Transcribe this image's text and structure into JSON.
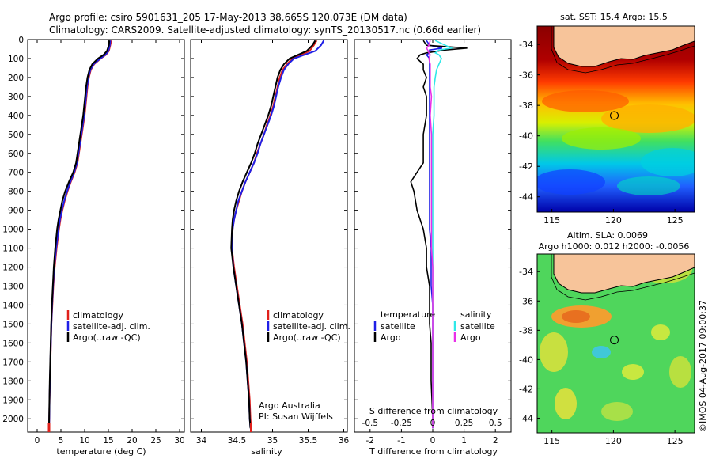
{
  "header": {
    "line1": "Argo profile: csiro 5901631_205 17-May-2013 38.665S 120.073E (DM data)",
    "line2": "Climatology: CARS2009. Satellite-adjusted climatology: synTS_20130517.nc (0.66d earlier)"
  },
  "colors": {
    "climatology": "#e0201b",
    "satellite": "#1f1fe6",
    "argo": "#000000",
    "satellite_salinity": "#30e8e8",
    "argo_salinity": "#e830e8",
    "land": "#f7c49a"
  },
  "chart_data": [
    {
      "type": "line",
      "id": "temperature",
      "xlabel": "temperature (deg C)",
      "ylabel": "",
      "xlim": [
        -2,
        31
      ],
      "ylim": [
        2070,
        0
      ],
      "xticks": [
        "0",
        "5",
        "10",
        "15",
        "20",
        "25",
        "30"
      ],
      "yticks": [
        "0",
        "100",
        "200",
        "300",
        "400",
        "500",
        "600",
        "700",
        "800",
        "900",
        "1000",
        "1100",
        "1200",
        "1300",
        "1400",
        "1500",
        "1600",
        "1700",
        "1800",
        "1900",
        "2000"
      ],
      "legend": [
        "climatology",
        "satellite-adj. clim.",
        "Argo(..raw -QC)"
      ],
      "depth": [
        5,
        30,
        60,
        80,
        100,
        130,
        160,
        200,
        250,
        300,
        350,
        400,
        450,
        500,
        550,
        600,
        650,
        700,
        750,
        800,
        850,
        900,
        950,
        1000,
        1100,
        1200,
        1300,
        1400,
        1500,
        1600,
        1700,
        1800,
        1900,
        2000,
        2050
      ],
      "series": [
        {
          "name": "climatology",
          "values": [
            15.6,
            15.4,
            15.1,
            14.5,
            13.4,
            12.0,
            11.3,
            10.9,
            10.6,
            10.4,
            10.2,
            10.0,
            9.7,
            9.4,
            9.1,
            8.8,
            8.5,
            7.9,
            7.1,
            6.4,
            5.8,
            5.3,
            4.9,
            4.6,
            4.1,
            3.7,
            3.4,
            3.2,
            3.0,
            2.9,
            2.8,
            2.7,
            2.6,
            2.55,
            2.5
          ]
        },
        {
          "name": "satellite-adj. clim.",
          "values": [
            15.4,
            15.3,
            15.0,
            14.4,
            13.3,
            11.9,
            11.2,
            10.8,
            10.5,
            10.3,
            10.1,
            9.9,
            9.6,
            9.3,
            9.0,
            8.7,
            8.4,
            7.8,
            7.0,
            6.3,
            5.7,
            5.2,
            4.8,
            4.5,
            4.0,
            3.6,
            3.35,
            3.15,
            3.0,
            2.88,
            2.78,
            2.68,
            2.6,
            2.55,
            2.5
          ]
        },
        {
          "name": "Argo(..raw -QC)",
          "values": [
            15.2,
            15.1,
            14.7,
            14.0,
            12.8,
            11.6,
            11.0,
            10.6,
            10.3,
            10.1,
            9.9,
            9.7,
            9.4,
            9.1,
            8.8,
            8.5,
            8.2,
            7.6,
            6.7,
            5.9,
            5.3,
            4.9,
            4.5,
            4.2,
            3.8,
            3.5,
            3.3,
            3.1,
            2.95,
            2.85,
            2.75,
            2.65,
            2.58,
            2.52,
            2.5
          ]
        }
      ]
    },
    {
      "type": "line",
      "id": "salinity",
      "xlabel": "salinity",
      "xlim": [
        33.85,
        36.05
      ],
      "ylim": [
        2070,
        0
      ],
      "xticks": [
        "34",
        "34.5",
        "35",
        "35.5",
        "36"
      ],
      "legend": [
        "climatology",
        "satellite-adj. clim.",
        "Argo(..raw -QC)"
      ],
      "annotation": [
        "Argo Australia",
        "PI: Susan Wijffels"
      ],
      "depth": [
        5,
        30,
        60,
        80,
        100,
        130,
        160,
        200,
        250,
        300,
        350,
        400,
        450,
        500,
        550,
        600,
        650,
        700,
        750,
        800,
        850,
        900,
        950,
        1000,
        1100,
        1200,
        1300,
        1400,
        1500,
        1600,
        1700,
        1800,
        1900,
        2000,
        2050
      ],
      "series": [
        {
          "name": "climatology",
          "values": [
            35.62,
            35.58,
            35.52,
            35.4,
            35.28,
            35.2,
            35.14,
            35.1,
            35.07,
            35.04,
            35.01,
            34.97,
            34.92,
            34.88,
            34.83,
            34.78,
            34.74,
            34.68,
            34.62,
            34.57,
            34.53,
            34.49,
            34.46,
            34.44,
            34.43,
            34.46,
            34.5,
            34.54,
            34.58,
            34.61,
            34.64,
            34.66,
            34.68,
            34.69,
            34.7
          ]
        },
        {
          "name": "satellite-adj. clim.",
          "values": [
            35.72,
            35.68,
            35.6,
            35.45,
            35.3,
            35.22,
            35.16,
            35.12,
            35.08,
            35.05,
            35.02,
            34.98,
            34.93,
            34.88,
            34.83,
            34.79,
            34.74,
            34.68,
            34.62,
            34.57,
            34.52,
            34.49,
            34.46,
            34.44,
            34.43,
            34.45,
            34.49,
            34.53,
            34.57,
            34.6,
            34.63,
            34.65,
            34.67,
            34.68,
            34.69
          ]
        },
        {
          "name": "Argo(..raw -QC)",
          "values": [
            35.6,
            35.56,
            35.48,
            35.36,
            35.24,
            35.16,
            35.11,
            35.07,
            35.04,
            35.01,
            34.98,
            34.94,
            34.89,
            34.84,
            34.79,
            34.75,
            34.7,
            34.64,
            34.58,
            34.53,
            34.49,
            34.46,
            34.44,
            34.43,
            34.42,
            34.45,
            34.49,
            34.53,
            34.57,
            34.6,
            34.63,
            34.65,
            34.67,
            34.68,
            34.69
          ]
        }
      ]
    },
    {
      "type": "line",
      "id": "differences",
      "xlabel": "T difference from climatology",
      "xlabel_top": "S difference from climatology",
      "xlim": [
        -2.5,
        2.5
      ],
      "ylim": [
        2070,
        0
      ],
      "xticks": [
        "-2",
        "-1",
        "0",
        "1",
        "2"
      ],
      "xticks_top": [
        "-0.5",
        "-0.25",
        "0",
        "0.25",
        "0.5"
      ],
      "legend": [
        "temperature",
        "satellite",
        "Argo",
        "salinity",
        "satellite",
        "Argo"
      ],
      "depth": [
        5,
        30,
        45,
        55,
        70,
        80,
        100,
        130,
        160,
        200,
        250,
        300,
        400,
        500,
        600,
        650,
        700,
        750,
        800,
        900,
        1000,
        1100,
        1200,
        1300,
        1400,
        1500,
        1600,
        1800,
        2000,
        2050
      ],
      "series": [
        {
          "name": "satellite",
          "values": [
            -0.2,
            -0.1,
            0.3,
            -0.1,
            -0.1,
            -0.2,
            -0.1,
            -0.1,
            -0.1,
            -0.1,
            -0.1,
            -0.1,
            -0.1,
            -0.1,
            -0.1,
            -0.1,
            -0.1,
            -0.1,
            -0.1,
            -0.1,
            -0.1,
            -0.05,
            -0.05,
            -0.05,
            0,
            0,
            0,
            0,
            0,
            0
          ]
        },
        {
          "name": "Argo",
          "values": [
            -0.3,
            -0.2,
            1.1,
            0.4,
            -0.2,
            -0.4,
            -0.5,
            -0.3,
            -0.3,
            -0.2,
            -0.3,
            -0.2,
            -0.2,
            -0.3,
            -0.3,
            -0.3,
            -0.5,
            -0.7,
            -0.6,
            -0.5,
            -0.3,
            -0.2,
            -0.2,
            -0.1,
            -0.1,
            -0.1,
            -0.05,
            -0.05,
            0,
            0
          ]
        },
        {
          "name": "satellite",
          "values": [
            0.02,
            0.1,
            0.15,
            0.05,
            0.02,
            0.05,
            0.07,
            0.05,
            0.03,
            0.02,
            0.01,
            0.01,
            0.01,
            0,
            0,
            0,
            0,
            0,
            0,
            0,
            0,
            0,
            0,
            0,
            0,
            0,
            0,
            0,
            0,
            0
          ]
        },
        {
          "name": "Argo",
          "values": [
            -0.02,
            -0.03,
            -0.05,
            -0.04,
            -0.03,
            -0.02,
            -0.03,
            -0.02,
            -0.02,
            -0.02,
            -0.02,
            -0.01,
            -0.02,
            -0.01,
            -0.01,
            -0.01,
            -0.01,
            -0.01,
            -0.01,
            -0.01,
            -0.01,
            -0.01,
            0,
            0,
            0,
            0,
            0,
            0,
            0,
            0
          ]
        }
      ]
    },
    {
      "type": "heatmap",
      "id": "sst-map",
      "title": "sat. SST: 15.4 Argo: 15.5",
      "xticks": [
        "115",
        "120",
        "125"
      ],
      "yticks": [
        "-34",
        "-36",
        "-38",
        "-40",
        "-42",
        "-44"
      ],
      "xlim": [
        113.8,
        126.6
      ],
      "ylim": [
        -45,
        -32.8
      ],
      "marker": {
        "lon": 120.073,
        "lat": -38.665
      }
    },
    {
      "type": "heatmap",
      "id": "sla-map",
      "title": "Altim. SLA: 0.0069",
      "subtitle": "Argo h1000: 0.012 h2000: -0.0056",
      "xticks": [
        "115",
        "120",
        "125"
      ],
      "yticks": [
        "-34",
        "-36",
        "-38",
        "-40",
        "-42",
        "-44"
      ],
      "xlim": [
        113.8,
        126.6
      ],
      "ylim": [
        -45,
        -32.8
      ],
      "marker": {
        "lon": 120.073,
        "lat": -38.665
      }
    }
  ],
  "footer": {
    "credit": "©IMOS 04-Aug-2017 09:00:37"
  }
}
